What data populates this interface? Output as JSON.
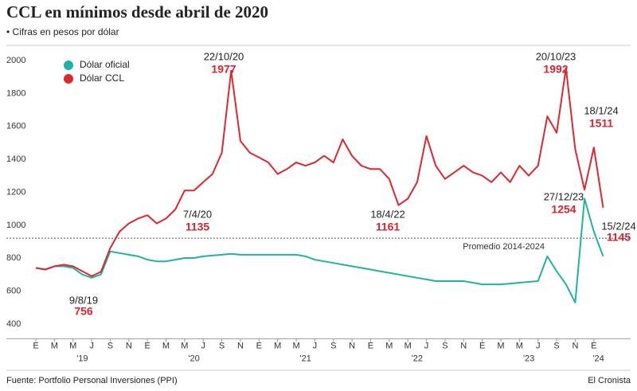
{
  "chart_data": {
    "type": "line",
    "title": "CCL en mínimos desde abril de 2020",
    "subtitle": "• Cifras en pesos por dólar",
    "source": "Fuente: Portfolio Personal Inversiones (PPI)",
    "publisher": "El Cronista",
    "x": [
      "2019-01",
      "2019-02",
      "2019-03",
      "2019-04",
      "2019-05",
      "2019-06",
      "2019-07",
      "2019-08",
      "2019-09",
      "2019-10",
      "2019-11",
      "2019-12",
      "2020-01",
      "2020-02",
      "2020-03",
      "2020-04",
      "2020-05",
      "2020-06",
      "2020-07",
      "2020-08",
      "2020-09",
      "2020-10",
      "2020-11",
      "2020-12",
      "2021-01",
      "2021-02",
      "2021-03",
      "2021-04",
      "2021-05",
      "2021-06",
      "2021-07",
      "2021-08",
      "2021-09",
      "2021-10",
      "2021-11",
      "2021-12",
      "2022-01",
      "2022-02",
      "2022-03",
      "2022-04",
      "2022-05",
      "2022-06",
      "2022-07",
      "2022-08",
      "2022-09",
      "2022-10",
      "2022-11",
      "2022-12",
      "2023-01",
      "2023-02",
      "2023-03",
      "2023-04",
      "2023-05",
      "2023-06",
      "2023-07",
      "2023-08",
      "2023-09",
      "2023-10",
      "2023-11",
      "2023-12",
      "2024-01",
      "2024-02"
    ],
    "xtick_labels": [
      "E",
      "M",
      "M",
      "J",
      "S",
      "N",
      "E",
      "M",
      "M",
      "J",
      "S",
      "N",
      "E",
      "M",
      "M",
      "J",
      "S",
      "N",
      "E",
      "M",
      "M",
      "J",
      "S",
      "N",
      "E",
      "M",
      "M",
      "J",
      "S",
      "N",
      "E"
    ],
    "year_labels": [
      "'19",
      "'20",
      "'21",
      "'22",
      "'23",
      "'24"
    ],
    "series": [
      {
        "name": "Dólar oficial",
        "color": "#1fb3a3",
        "values": [
          780,
          770,
          790,
          790,
          780,
          740,
          720,
          740,
          880,
          870,
          860,
          850,
          830,
          820,
          820,
          830,
          840,
          840,
          850,
          855,
          860,
          865,
          860,
          860,
          860,
          860,
          860,
          860,
          860,
          850,
          830,
          820,
          810,
          800,
          790,
          780,
          770,
          760,
          750,
          740,
          730,
          720,
          710,
          700,
          700,
          700,
          700,
          690,
          680,
          680,
          680,
          685,
          690,
          695,
          700,
          850,
          760,
          680,
          570,
          1200,
          1000,
          850
        ]
      },
      {
        "name": "Dólar CCL",
        "color": "#e0262f",
        "values": [
          780,
          770,
          790,
          800,
          790,
          760,
          730,
          756,
          900,
          1000,
          1050,
          1080,
          1100,
          1050,
          1080,
          1135,
          1250,
          1250,
          1300,
          1350,
          1480,
          1977,
          1550,
          1480,
          1450,
          1420,
          1350,
          1380,
          1420,
          1400,
          1420,
          1460,
          1420,
          1560,
          1460,
          1400,
          1380,
          1380,
          1320,
          1161,
          1200,
          1300,
          1580,
          1400,
          1320,
          1360,
          1400,
          1360,
          1340,
          1300,
          1360,
          1300,
          1400,
          1340,
          1400,
          1700,
          1600,
          1992,
          1500,
          1254,
          1511,
          1145
        ]
      }
    ],
    "average": {
      "label": "Promedio 2014-2024",
      "value": 960
    },
    "annotations": [
      {
        "date": "9/8/19",
        "value": 756
      },
      {
        "date": "7/4/20",
        "value": 1135
      },
      {
        "date": "22/10/20",
        "value": 1977
      },
      {
        "date": "18/4/22",
        "value": 1161
      },
      {
        "date": "20/10/23",
        "value": 1992
      },
      {
        "date": "18/1/24",
        "value": 1511
      },
      {
        "date": "27/12/23",
        "value": 1254
      },
      {
        "date": "15/2/24",
        "value": 1145
      }
    ],
    "ylim": [
      350,
      2100
    ],
    "yticks": [
      400,
      600,
      800,
      1000,
      1200,
      1400,
      1600,
      1800,
      2000
    ],
    "legend": "top-left"
  }
}
